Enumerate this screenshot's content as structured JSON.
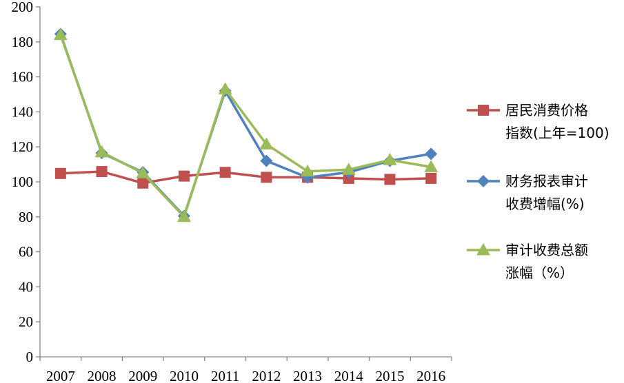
{
  "chart_data": {
    "type": "line",
    "categories": [
      "2007",
      "2008",
      "2009",
      "2010",
      "2011",
      "2012",
      "2013",
      "2014",
      "2015",
      "2016"
    ],
    "ylim": [
      0,
      200
    ],
    "yticks": [
      "0",
      "20",
      "40",
      "60",
      "80",
      "100",
      "120",
      "140",
      "160",
      "180",
      "200"
    ],
    "grid": false,
    "legend_position": "right",
    "series": [
      {
        "name": "居民消费价格指数(上年=100)",
        "legend_lines": [
          "居民消费价格",
          "指数(上年=100)"
        ],
        "color": "#C0504D",
        "marker": "square",
        "values": [
          104.8,
          105.9,
          99.3,
          103.3,
          105.4,
          102.6,
          102.6,
          102.0,
          101.4,
          102.0
        ]
      },
      {
        "name": "财务报表审计收费增幅(%)",
        "legend_lines": [
          "财务报表审计",
          "收费增幅(%)"
        ],
        "color": "#4F81BD",
        "marker": "diamond",
        "values": [
          184.5,
          116.5,
          105.5,
          80.5,
          152.0,
          112.0,
          102.5,
          105.5,
          112.0,
          116.0
        ]
      },
      {
        "name": "审计收费总额涨幅（%）",
        "legend_lines": [
          "审计收费总额",
          "涨幅（%）"
        ],
        "color": "#9BBB59",
        "marker": "triangle",
        "values": [
          184.0,
          117.0,
          105.0,
          80.0,
          153.0,
          121.5,
          106.0,
          107.0,
          112.5,
          108.5
        ]
      }
    ]
  }
}
